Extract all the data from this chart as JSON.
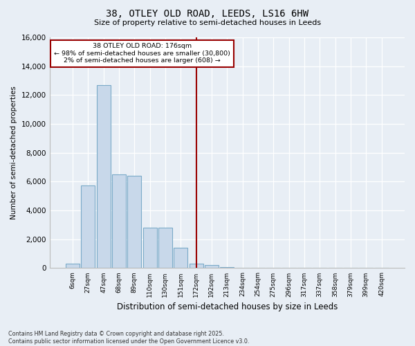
{
  "title": "38, OTLEY OLD ROAD, LEEDS, LS16 6HW",
  "subtitle": "Size of property relative to semi-detached houses in Leeds",
  "xlabel": "Distribution of semi-detached houses by size in Leeds",
  "ylabel": "Number of semi-detached properties",
  "footer_line1": "Contains HM Land Registry data © Crown copyright and database right 2025.",
  "footer_line2": "Contains public sector information licensed under the Open Government Licence v3.0.",
  "annotation_title": "38 OTLEY OLD ROAD: 176sqm",
  "annotation_line2": "← 98% of semi-detached houses are smaller (30,800)",
  "annotation_line3": "2% of semi-detached houses are larger (608) →",
  "vline_bin": "172sqm",
  "categories": [
    "6sqm",
    "27sqm",
    "47sqm",
    "68sqm",
    "89sqm",
    "110sqm",
    "130sqm",
    "151sqm",
    "172sqm",
    "192sqm",
    "213sqm",
    "234sqm",
    "254sqm",
    "275sqm",
    "296sqm",
    "317sqm",
    "337sqm",
    "358sqm",
    "379sqm",
    "399sqm",
    "420sqm"
  ],
  "bar_heights": [
    300,
    5750,
    12700,
    6500,
    6400,
    2800,
    2800,
    1400,
    300,
    200,
    80,
    20,
    10,
    5,
    2,
    1,
    0,
    0,
    0,
    0,
    0
  ],
  "bar_color": "#c8d8ea",
  "bar_edge_color": "#7aaac8",
  "vline_color": "#990000",
  "annotation_box_color": "#990000",
  "background_color": "#e8eef5",
  "grid_color": "#d0dae5",
  "ylim": [
    0,
    16000
  ],
  "yticks": [
    0,
    2000,
    4000,
    6000,
    8000,
    10000,
    12000,
    14000,
    16000
  ]
}
